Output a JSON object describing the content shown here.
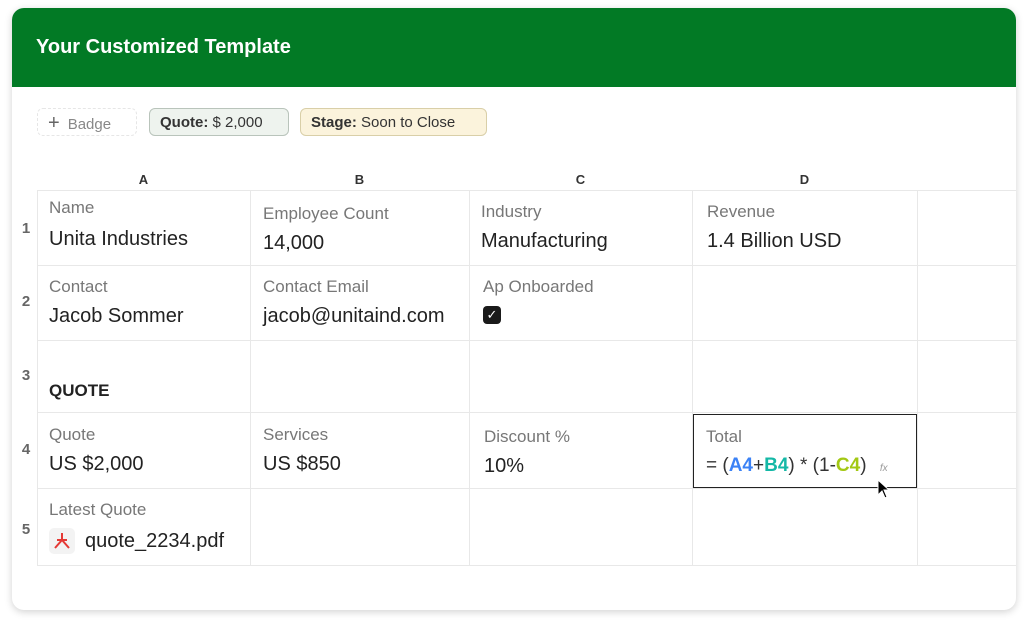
{
  "header": {
    "title": "Your Customized Template"
  },
  "badges": {
    "add_label": "Badge",
    "quote_key": "Quote:",
    "quote_value": "$ 2,000",
    "stage_key": "Stage:",
    "stage_value": "Soon to Close"
  },
  "columns": [
    "A",
    "B",
    "C",
    "D"
  ],
  "rows": [
    "1",
    "2",
    "3",
    "4",
    "5"
  ],
  "cells": {
    "r1": [
      {
        "label": "Name",
        "value": "Unita Industries"
      },
      {
        "label": "Employee Count",
        "value": "14,000"
      },
      {
        "label": "Industry",
        "value": "Manufacturing"
      },
      {
        "label": "Revenue",
        "value": "1.4 Billion USD"
      }
    ],
    "r2": [
      {
        "label": "Contact",
        "value": "Jacob Sommer"
      },
      {
        "label": "Contact Email",
        "value": "jacob@unitaind.com"
      },
      {
        "label": "Ap Onboarded",
        "checked": true
      }
    ],
    "r3": {
      "heading": "QUOTE"
    },
    "r4": [
      {
        "label": "Quote",
        "value": "US $2,000"
      },
      {
        "label": "Services",
        "value": "US $850"
      },
      {
        "label": "Discount %",
        "value": "10%"
      },
      {
        "label": "Total",
        "formula": {
          "eq": "= (",
          "a": "A4",
          "plus": "+",
          "b": "B4",
          "mid": ") * (1-",
          "c": "C4",
          "end": ")",
          "fx": "fx"
        }
      }
    ],
    "r5": [
      {
        "label": "Latest Quote",
        "file": "quote_2234.pdf"
      }
    ]
  },
  "colors": {
    "header": "#027a25",
    "ref_a": "#3b82f6",
    "ref_b": "#14b8a6",
    "ref_c": "#a3c814",
    "pdf": "#e53935"
  }
}
